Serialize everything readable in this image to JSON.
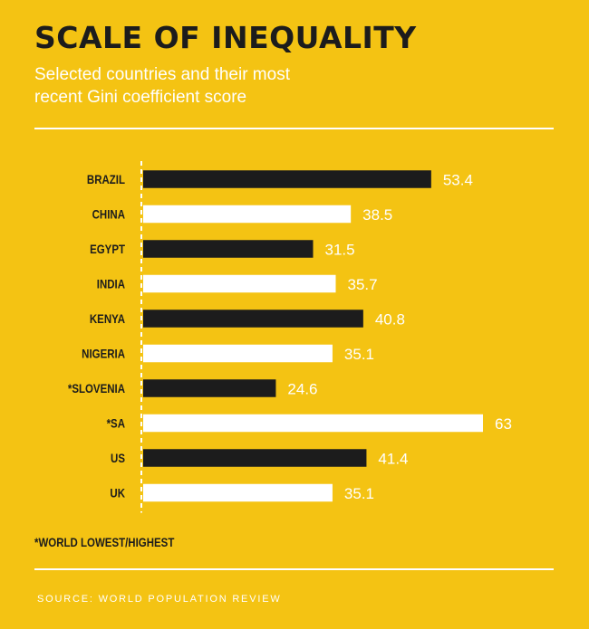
{
  "header": {
    "title": "SCALE OF INEQUALITY",
    "subtitle_line1": "Selected countries and their most",
    "subtitle_line2": "recent Gini coefficient score"
  },
  "footnote": "*WORLD LOWEST/HIGHEST",
  "source": "SOURCE: WORLD POPULATION REVIEW",
  "colors": {
    "background": "#f4c313",
    "dark_bar": "#1c1c1c",
    "light_bar": "#ffffff",
    "label": "#1c1c1c",
    "value": "#ffffff"
  },
  "chart_data": {
    "type": "bar",
    "orientation": "horizontal",
    "title": "SCALE OF INEQUALITY",
    "categories": [
      "BRAZIL",
      "CHINA",
      "EGYPT",
      "INDIA",
      "KENYA",
      "NIGERIA",
      "*SLOVENIA",
      "*SA",
      "US",
      "UK"
    ],
    "values": [
      53.4,
      38.5,
      31.5,
      35.7,
      40.8,
      35.1,
      24.6,
      63,
      41.4,
      35.1
    ],
    "value_labels": [
      "53.4",
      "38.5",
      "31.5",
      "35.7",
      "40.8",
      "35.1",
      "24.6",
      "63",
      "41.4",
      "35.1"
    ],
    "bar_colors": [
      "dark",
      "light",
      "dark",
      "light",
      "dark",
      "light",
      "dark",
      "light",
      "dark",
      "light"
    ],
    "xlim": [
      0,
      63
    ],
    "grid": false,
    "legend": "none"
  }
}
